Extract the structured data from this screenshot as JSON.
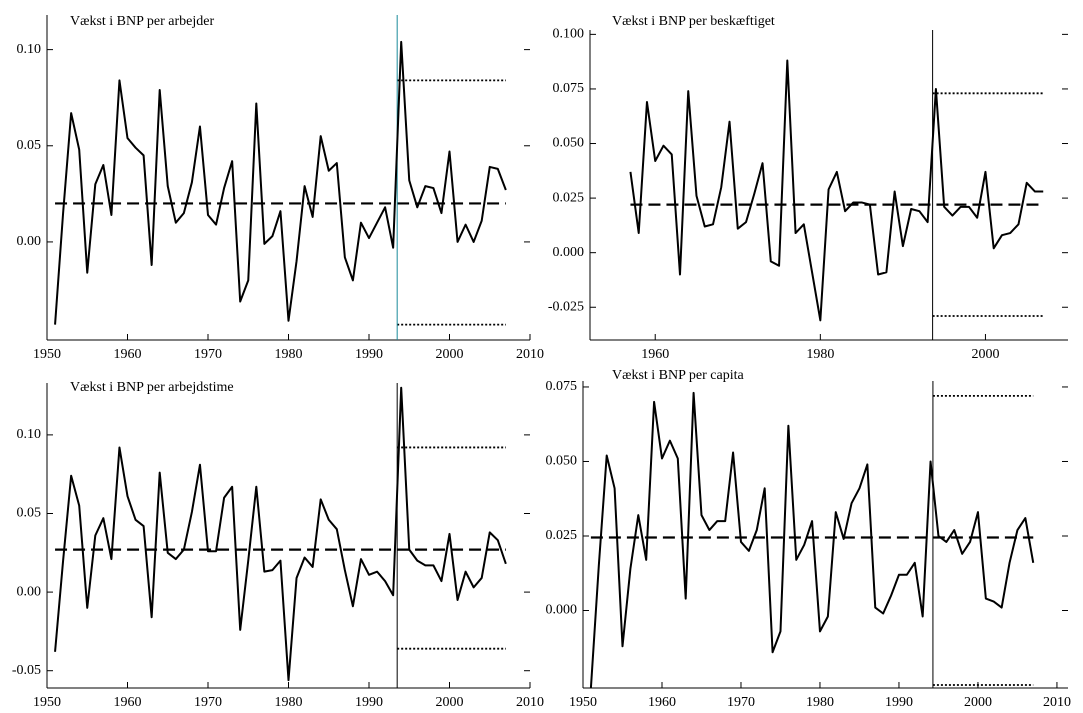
{
  "chart_data": [
    {
      "type": "line",
      "title": "Vækst i BNP per arbejder",
      "x": [
        1951,
        1952,
        1953,
        1954,
        1955,
        1956,
        1957,
        1958,
        1959,
        1960,
        1961,
        1962,
        1963,
        1964,
        1965,
        1966,
        1967,
        1968,
        1969,
        1970,
        1971,
        1972,
        1973,
        1974,
        1975,
        1976,
        1977,
        1978,
        1979,
        1980,
        1981,
        1982,
        1983,
        1984,
        1985,
        1986,
        1987,
        1988,
        1989,
        1990,
        1991,
        1992,
        1993,
        1994,
        1995,
        1996,
        1997,
        1998,
        1999,
        2000,
        2001,
        2002,
        2003,
        2004,
        2005,
        2006,
        2007
      ],
      "series": [
        {
          "color": "#000000",
          "values": [
            -0.043,
            0.015,
            0.067,
            0.048,
            -0.016,
            0.03,
            0.04,
            0.014,
            0.084,
            0.054,
            0.049,
            0.045,
            -0.012,
            0.079,
            0.029,
            0.01,
            0.015,
            0.031,
            0.06,
            0.014,
            0.009,
            0.028,
            0.042,
            -0.031,
            -0.02,
            0.072,
            -0.001,
            0.003,
            0.016,
            -0.041,
            -0.01,
            0.029,
            0.013,
            0.055,
            0.037,
            0.041,
            -0.008,
            -0.02,
            0.01,
            0.002,
            0.01,
            0.018,
            -0.003,
            0.104,
            0.032,
            0.018,
            0.029,
            0.028,
            0.015,
            0.047,
            0.0,
            0.009,
            0.0,
            0.011,
            0.039,
            0.038,
            0.027
          ]
        }
      ],
      "mean": 0.02,
      "band": [
        -0.043,
        0.084
      ],
      "break": 1993.5,
      "break_color": "#1a8a9a",
      "xlim": [
        1950,
        2010
      ],
      "xticks": [
        1950,
        1960,
        1970,
        1980,
        1990,
        2000,
        2010
      ],
      "ylim": [
        -0.051,
        0.118
      ],
      "yticks": [
        {
          "value": 0.1,
          "label": "0.10"
        },
        {
          "value": 0.05,
          "label": "0.05"
        },
        {
          "value": 0,
          "label": "0.00"
        }
      ]
    },
    {
      "type": "line",
      "title": "Vækst i BNP per beskæftiget",
      "x": [
        1957,
        1958,
        1959,
        1960,
        1961,
        1962,
        1963,
        1964,
        1965,
        1966,
        1967,
        1968,
        1969,
        1970,
        1971,
        1972,
        1973,
        1974,
        1975,
        1976,
        1977,
        1978,
        1979,
        1980,
        1981,
        1982,
        1983,
        1984,
        1985,
        1986,
        1987,
        1988,
        1989,
        1990,
        1991,
        1992,
        1993,
        1994,
        1995,
        1996,
        1997,
        1998,
        1999,
        2000,
        2001,
        2002,
        2003,
        2004,
        2005,
        2006,
        2007
      ],
      "series": [
        {
          "color": "#000000",
          "values": [
            0.037,
            0.009,
            0.069,
            0.042,
            0.049,
            0.045,
            -0.01,
            0.074,
            0.026,
            0.012,
            0.013,
            0.03,
            0.06,
            0.011,
            0.014,
            0.027,
            0.041,
            -0.004,
            -0.006,
            0.088,
            0.009,
            0.013,
            -0.009,
            -0.031,
            0.029,
            0.037,
            0.019,
            0.023,
            0.023,
            0.022,
            -0.01,
            -0.009,
            0.028,
            0.003,
            0.02,
            0.019,
            0.014,
            0.075,
            0.021,
            0.017,
            0.021,
            0.021,
            0.016,
            0.037,
            0.002,
            0.008,
            0.009,
            0.013,
            0.032,
            0.028,
            0.028
          ]
        }
      ],
      "mean": 0.022,
      "band": [
        -0.029,
        0.073
      ],
      "break": 1993.6,
      "break_color": "#000000",
      "xlim": [
        1952.1,
        2010
      ],
      "xticks": [
        1960,
        1980,
        2000
      ],
      "ylim": [
        -0.04,
        0.102
      ],
      "yticks": [
        {
          "value": 0.1,
          "label": "0.100"
        },
        {
          "value": 0.075,
          "label": "0.075"
        },
        {
          "value": 0.05,
          "label": "0.050"
        },
        {
          "value": 0.025,
          "label": "0.025"
        },
        {
          "value": 0,
          "label": "0.000"
        },
        {
          "value": -0.025,
          "label": "-0.025"
        }
      ]
    },
    {
      "type": "line",
      "title": "Vækst i BNP per arbejdstime",
      "x": [
        1951,
        1952,
        1953,
        1954,
        1955,
        1956,
        1957,
        1958,
        1959,
        1960,
        1961,
        1962,
        1963,
        1964,
        1965,
        1966,
        1967,
        1968,
        1969,
        1970,
        1971,
        1972,
        1973,
        1974,
        1975,
        1976,
        1977,
        1978,
        1979,
        1980,
        1981,
        1982,
        1983,
        1984,
        1985,
        1986,
        1987,
        1988,
        1989,
        1990,
        1991,
        1992,
        1993,
        1994,
        1995,
        1996,
        1997,
        1998,
        1999,
        2000,
        2001,
        2002,
        2003,
        2004,
        2005,
        2006,
        2007
      ],
      "series": [
        {
          "color": "#000000",
          "values": [
            -0.038,
            0.02,
            0.074,
            0.055,
            -0.01,
            0.036,
            0.047,
            0.021,
            0.092,
            0.061,
            0.046,
            0.042,
            -0.016,
            0.076,
            0.025,
            0.021,
            0.027,
            0.051,
            0.081,
            0.026,
            0.026,
            0.06,
            0.067,
            -0.024,
            0.02,
            0.067,
            0.013,
            0.014,
            0.02,
            -0.056,
            0.009,
            0.022,
            0.016,
            0.059,
            0.046,
            0.04,
            0.014,
            -0.009,
            0.021,
            0.011,
            0.013,
            0.007,
            -0.002,
            0.13,
            0.027,
            0.02,
            0.017,
            0.017,
            0.007,
            0.037,
            -0.005,
            0.013,
            0.003,
            0.009,
            0.038,
            0.033,
            0.018
          ]
        }
      ],
      "mean": 0.027,
      "band": [
        -0.036,
        0.092
      ],
      "break": 1993.5,
      "break_color": "#000000",
      "xlim": [
        1950,
        2010
      ],
      "xticks": [
        1950,
        1960,
        1970,
        1980,
        1990,
        2000,
        2010
      ],
      "ylim": [
        -0.061,
        0.133
      ],
      "yticks": [
        {
          "value": 0.1,
          "label": "0.10"
        },
        {
          "value": 0.05,
          "label": "0.05"
        },
        {
          "value": 0,
          "label": "0.00"
        },
        {
          "value": -0.05,
          "label": "-0.05"
        }
      ]
    },
    {
      "type": "line",
      "title": "Vækst i BNP per capita",
      "x": [
        1951,
        1952,
        1953,
        1954,
        1955,
        1956,
        1957,
        1958,
        1959,
        1960,
        1961,
        1962,
        1963,
        1964,
        1965,
        1966,
        1967,
        1968,
        1969,
        1970,
        1971,
        1972,
        1973,
        1974,
        1975,
        1976,
        1977,
        1978,
        1979,
        1980,
        1981,
        1982,
        1983,
        1984,
        1985,
        1986,
        1987,
        1988,
        1989,
        1990,
        1991,
        1992,
        1993,
        1994,
        1995,
        1996,
        1997,
        1998,
        1999,
        2000,
        2001,
        2002,
        2003,
        2004,
        2005,
        2006,
        2007
      ],
      "series": [
        {
          "color": "#000000",
          "values": [
            -0.026,
            0.015,
            0.052,
            0.041,
            -0.012,
            0.014,
            0.032,
            0.017,
            0.07,
            0.051,
            0.057,
            0.051,
            0.004,
            0.073,
            0.032,
            0.027,
            0.03,
            0.03,
            0.053,
            0.023,
            0.02,
            0.027,
            0.041,
            -0.014,
            -0.007,
            0.062,
            0.017,
            0.022,
            0.03,
            -0.007,
            -0.002,
            0.033,
            0.024,
            0.036,
            0.041,
            0.049,
            0.001,
            -0.001,
            0.005,
            0.012,
            0.012,
            0.016,
            -0.002,
            0.05,
            0.025,
            0.023,
            0.027,
            0.019,
            0.023,
            0.033,
            0.004,
            0.003,
            0.001,
            0.016,
            0.027,
            0.031,
            0.016
          ]
        }
      ],
      "mean": 0.0245,
      "band": [
        -0.025,
        0.072
      ],
      "break": 1994.3,
      "break_color": "#000000",
      "xlim": [
        1950,
        2011.4
      ],
      "xticks": [
        1950,
        1960,
        1970,
        1980,
        1990,
        2000,
        2010
      ],
      "ylim": [
        -0.026,
        0.077
      ],
      "yticks": [
        {
          "value": 0.075,
          "label": "0.075"
        },
        {
          "value": 0.05,
          "label": "0.050"
        },
        {
          "value": 0.025,
          "label": "0.025"
        },
        {
          "value": 0,
          "label": "0.000"
        }
      ]
    }
  ]
}
